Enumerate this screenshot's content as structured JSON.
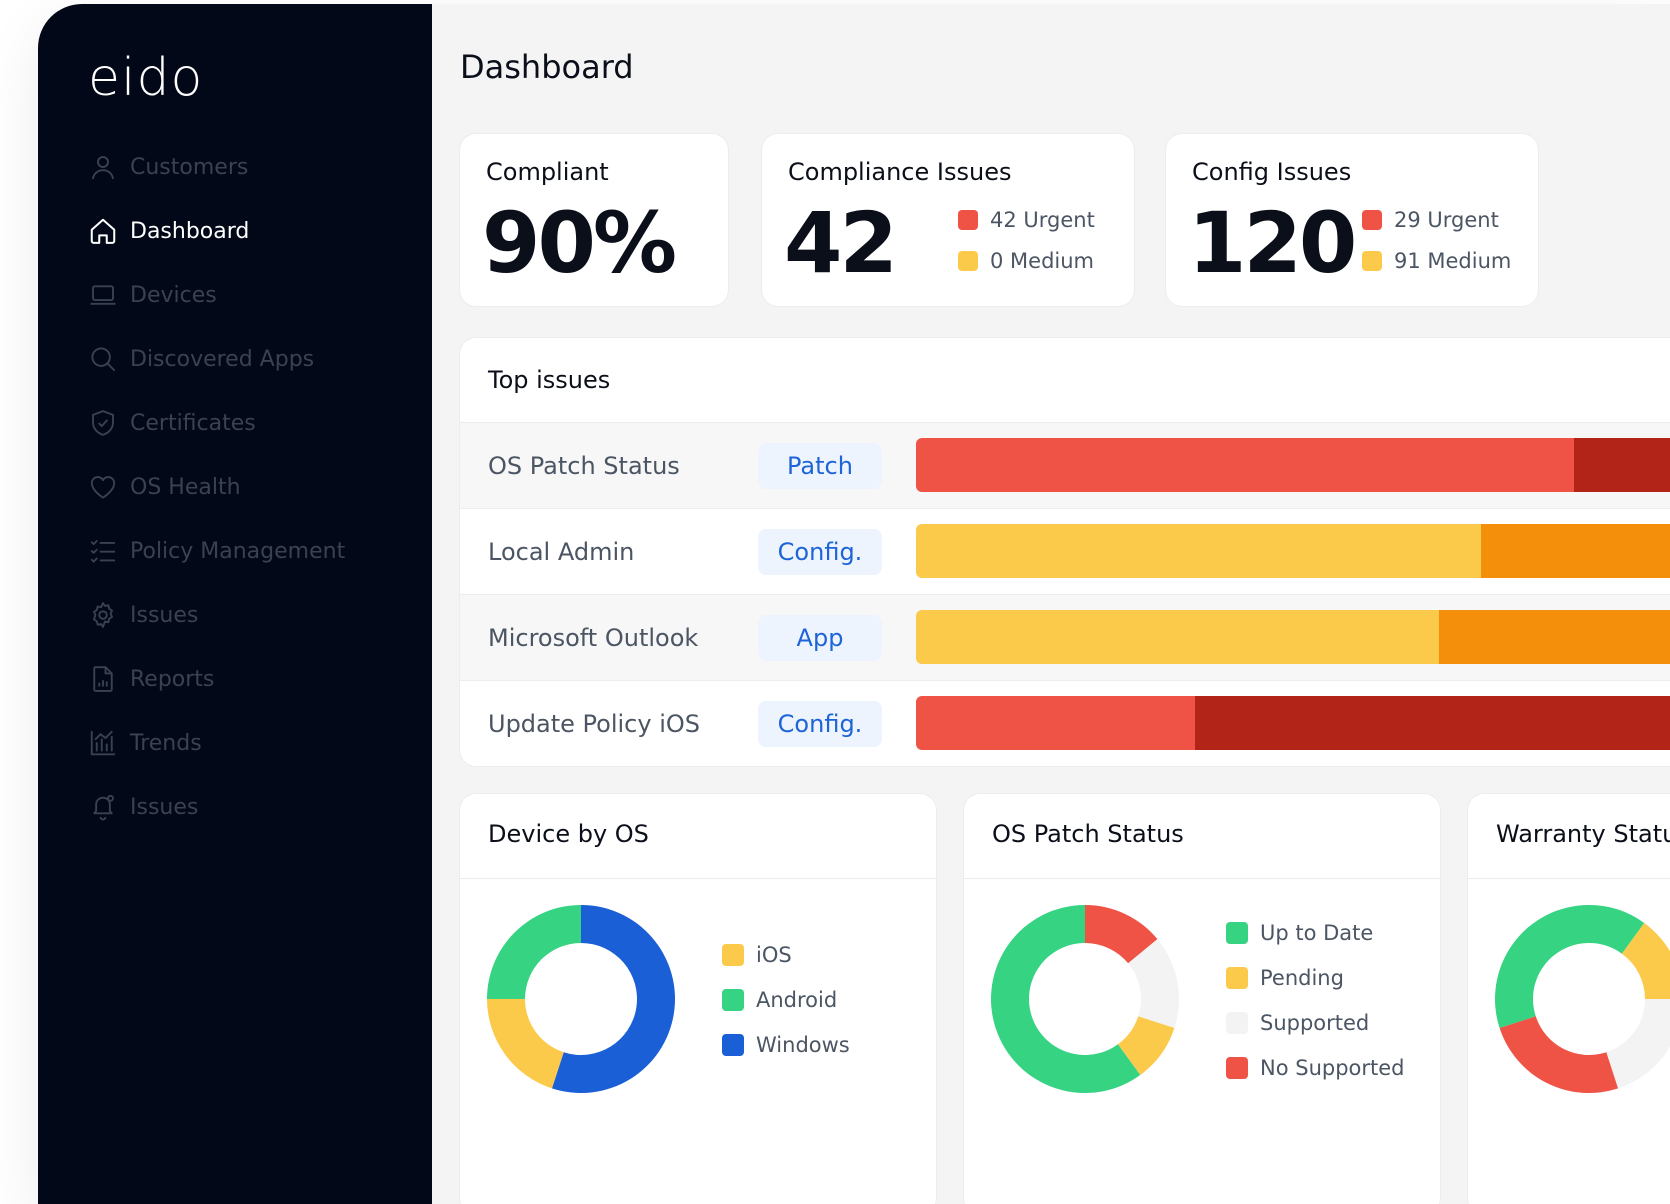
{
  "brand": {
    "logo": "eido"
  },
  "sidebar": {
    "items": [
      {
        "label": "Customers",
        "icon": "user-icon",
        "active": false
      },
      {
        "label": "Dashboard",
        "icon": "home-icon",
        "active": true
      },
      {
        "label": "Devices",
        "icon": "laptop-icon",
        "active": false
      },
      {
        "label": "Discovered Apps",
        "icon": "search-icon",
        "active": false
      },
      {
        "label": "Certificates",
        "icon": "shield-check-icon",
        "active": false
      },
      {
        "label": "OS Health",
        "icon": "heart-icon",
        "active": false
      },
      {
        "label": "Policy Management",
        "icon": "checklist-icon",
        "active": false
      },
      {
        "label": "Issues",
        "icon": "gear-icon",
        "active": false
      },
      {
        "label": "Reports",
        "icon": "report-file-icon",
        "active": false
      },
      {
        "label": "Trends",
        "icon": "bar-chart-icon",
        "active": false
      },
      {
        "label": "Issues",
        "icon": "bell-icon",
        "active": false
      }
    ]
  },
  "page": {
    "title": "Dashboard"
  },
  "stats": {
    "compliant": {
      "title": "Compliant",
      "value": "90%"
    },
    "compliance_issues": {
      "title": "Compliance Issues",
      "value": "42",
      "urgent": "42 Urgent",
      "medium": "0 Medium"
    },
    "config_issues": {
      "title": "Config Issues",
      "value": "120",
      "urgent": "29 Urgent",
      "medium": "91 Medium"
    }
  },
  "colors": {
    "urgent": "#ef5345",
    "medium": "#fcca4b",
    "urgent_dark": "#b32418",
    "medium_dark": "#f48f0b",
    "tag_text": "#1d64d8",
    "ios": "#fcca4b",
    "android": "#36d383",
    "windows": "#1a5fd6",
    "supported": "#f3f3f4"
  },
  "top_issues": {
    "title": "Top issues",
    "rows": [
      {
        "label": "OS Patch Status",
        "tag": "Patch",
        "primary_share": 0.78,
        "primary": "#ef5345",
        "secondary": "#b32418"
      },
      {
        "label": "Local Admin",
        "tag": "Config.",
        "primary_share": 0.67,
        "primary": "#fcca4b",
        "secondary": "#f48f0b"
      },
      {
        "label": "Microsoft Outlook",
        "tag": "App",
        "primary_share": 0.62,
        "primary": "#fcca4b",
        "secondary": "#f48f0b"
      },
      {
        "label": "Update Policy iOS",
        "tag": "Config.",
        "primary_share": 0.33,
        "primary": "#ef5345",
        "secondary": "#b32418"
      }
    ]
  },
  "charts": {
    "device_by_os": {
      "title": "Device by OS",
      "segments": [
        {
          "label": "iOS",
          "value": 20,
          "color": "#fcca4b"
        },
        {
          "label": "Android",
          "value": 25,
          "color": "#36d383"
        },
        {
          "label": "Windows",
          "value": 55,
          "color": "#1a5fd6"
        }
      ]
    },
    "os_patch_status": {
      "title": "OS Patch Status",
      "segments": [
        {
          "label": "Up to Date",
          "value": 60,
          "color": "#36d383"
        },
        {
          "label": "Pending",
          "value": 10,
          "color": "#fcca4b"
        },
        {
          "label": "Supported",
          "value": 16,
          "color": "#f3f3f4"
        },
        {
          "label": "No Supported",
          "value": 14,
          "color": "#ef5345"
        }
      ]
    },
    "warranty": {
      "title": "Warranty Status",
      "segments": [
        {
          "value": 10,
          "color": "#36d383"
        },
        {
          "value": 15,
          "color": "#fcca4b"
        },
        {
          "value": 20,
          "color": "#f3f3f4"
        },
        {
          "value": 25,
          "color": "#ef5345"
        },
        {
          "value": 30,
          "color": "#36d383"
        }
      ]
    }
  }
}
